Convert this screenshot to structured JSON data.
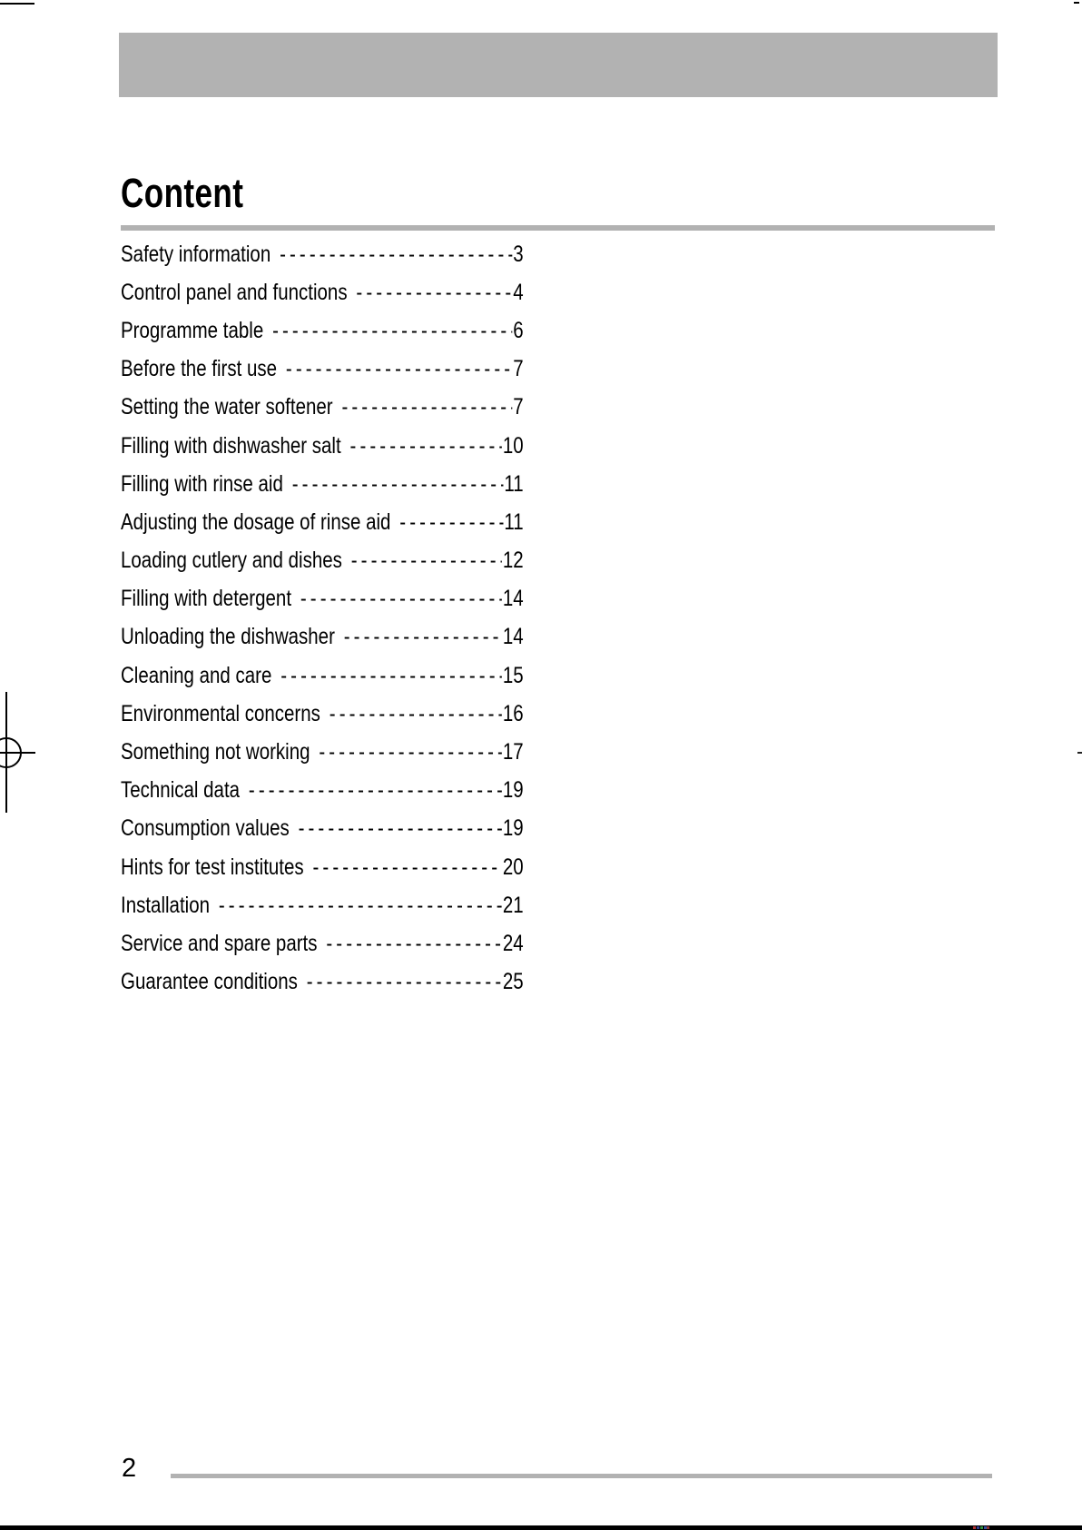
{
  "page": {
    "title": "Content",
    "page_number": "2"
  },
  "toc": {
    "dash_leader": "------------------------------------------------------------",
    "entries": [
      {
        "label": "Safety information",
        "page": "3"
      },
      {
        "label": "Control panel and functions",
        "page": "4"
      },
      {
        "label": "Programme table",
        "page": "6"
      },
      {
        "label": "Before the first use",
        "page": "7"
      },
      {
        "label": "Setting the water softener",
        "page": "7"
      },
      {
        "label": "Filling with dishwasher salt",
        "page": "10"
      },
      {
        "label": "Filling with rinse aid",
        "page": "11"
      },
      {
        "label": "Adjusting the dosage of rinse aid",
        "page": "11"
      },
      {
        "label": "Loading cutlery and dishes",
        "page": "12"
      },
      {
        "label": "Filling with detergent",
        "page": "14"
      },
      {
        "label": "Unloading the dishwasher",
        "page": "14"
      },
      {
        "label": "Cleaning and care",
        "page": "15"
      },
      {
        "label": "Environmental concerns",
        "page": "16"
      },
      {
        "label": "Something not working",
        "page": "17"
      },
      {
        "label": "Technical data",
        "page": "19"
      },
      {
        "label": "Consumption values",
        "page": "19"
      },
      {
        "label": "Hints for test institutes",
        "page": "20"
      },
      {
        "label": "Installation",
        "page": "21"
      },
      {
        "label": "Service and spare parts",
        "page": "24"
      },
      {
        "label": "Guarantee conditions",
        "page": "25"
      }
    ]
  },
  "colors": {
    "banner_gray": "#b2b2b2",
    "rule_gray": "#b2b2b2",
    "bottom_strip_black": "#000000",
    "calibration_dots": [
      "#b03030",
      "#304090",
      "#309040",
      "#3050a0",
      "#903030"
    ]
  }
}
